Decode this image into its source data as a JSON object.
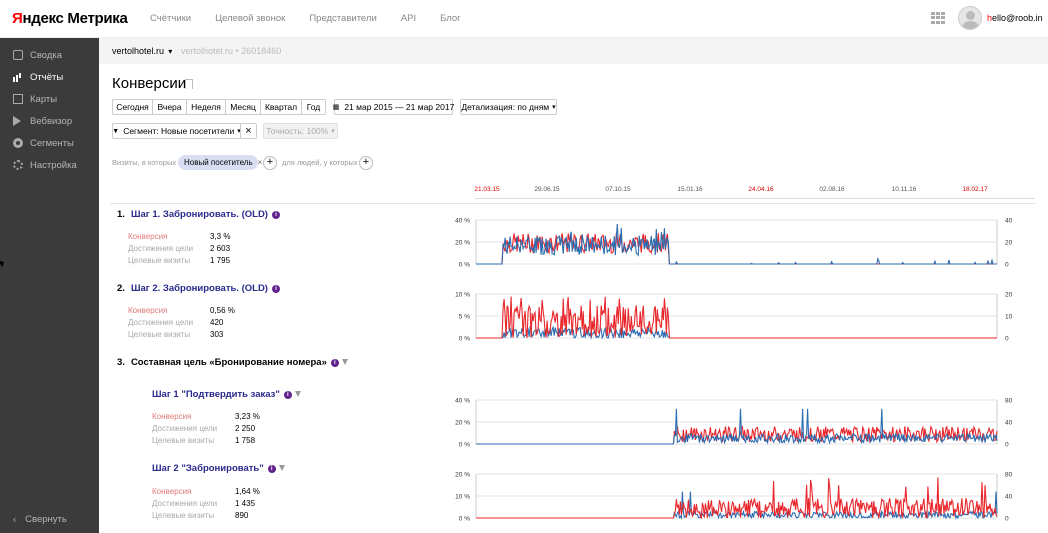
{
  "header": {
    "logo_ya": "Я",
    "logo_rest": "ндекс Метрика",
    "nav": [
      "Счётчики",
      "Целевой звонок",
      "Представители",
      "API",
      "Блог"
    ],
    "user_first": "h",
    "user_rest": "ello@roob.in"
  },
  "sidebar": {
    "items": [
      {
        "label": "Сводка",
        "icon": "home-icon"
      },
      {
        "label": "Отчёты",
        "icon": "bar-chart-icon"
      },
      {
        "label": "Карты",
        "icon": "map-icon"
      },
      {
        "label": "Вебвизор",
        "icon": "play-icon"
      },
      {
        "label": "Сегменты",
        "icon": "segments-icon"
      },
      {
        "label": "Настройка",
        "icon": "gear-icon"
      }
    ],
    "collapse": "Свернуть"
  },
  "crumb": {
    "counter": "vertolhotel.ru",
    "counter_id": "vertolhotel.ru  •  26018460"
  },
  "page": {
    "title": "Конверсии"
  },
  "toolbar": {
    "periods": [
      "Сегодня",
      "Вчера",
      "Неделя",
      "Месяц",
      "Квартал",
      "Год"
    ],
    "date_range": "21 мар 2015 — 21 мар 2017",
    "detail": "Детализация: по дням",
    "segment": "Сегмент: Новые посетители",
    "accuracy": "Точность: 100%"
  },
  "filter": {
    "prefix": "Визиты, в которых",
    "chip": "Новый посетитель",
    "suffix": "для людей, у которых"
  },
  "timeline": {
    "dates": [
      {
        "label": "21.03.15",
        "red": true
      },
      {
        "label": "29.06.15",
        "red": false
      },
      {
        "label": "07.10.15",
        "red": false
      },
      {
        "label": "15.01.16",
        "red": false
      },
      {
        "label": "24.04.16",
        "red": true
      },
      {
        "label": "02.08.16",
        "red": false
      },
      {
        "label": "10.11.16",
        "red": false
      },
      {
        "label": "18.02.17",
        "red": true
      }
    ]
  },
  "metric_labels": {
    "conv": "Конверсия",
    "reach": "Достижения цели",
    "visits": "Целевые визиты"
  },
  "goals": [
    {
      "num": "1.",
      "title": "Шаг 1. Забронировать. (OLD)",
      "conv": "3,3 %",
      "reach": "2 603",
      "visits": "1 795",
      "left_ticks": [
        "40 %",
        "20 %",
        "0 %"
      ],
      "right_ticks": [
        "40",
        "20",
        "0"
      ]
    },
    {
      "num": "2.",
      "title": "Шаг 2. Забронировать. (OLD)",
      "conv": "0,56 %",
      "reach": "420",
      "visits": "303",
      "left_ticks": [
        "10 %",
        "5 %",
        "0 %"
      ],
      "right_ticks": [
        "20",
        "10",
        "0"
      ]
    },
    {
      "num": "3.",
      "title": "Составная цель «Бронирование номера»"
    },
    {
      "title": "Шаг 1 \"Подтвердить заказ\"",
      "conv": "3,23 %",
      "reach": "2 250",
      "visits": "1 758",
      "left_ticks": [
        "40 %",
        "20 %",
        "0 %"
      ],
      "right_ticks": [
        "80",
        "40",
        "0"
      ]
    },
    {
      "title": "Шаг 2 \"Забронировать\"",
      "conv": "1,64 %",
      "reach": "1 435",
      "visits": "890",
      "left_ticks": [
        "20 %",
        "10 %",
        "0 %"
      ],
      "right_ticks": [
        "80",
        "40",
        "0"
      ]
    }
  ],
  "colors": {
    "series_red": "#e8262b",
    "series_blue": "#2b6cb0",
    "link": "#2a2a8c",
    "sidebar": "#3b3b3b"
  }
}
